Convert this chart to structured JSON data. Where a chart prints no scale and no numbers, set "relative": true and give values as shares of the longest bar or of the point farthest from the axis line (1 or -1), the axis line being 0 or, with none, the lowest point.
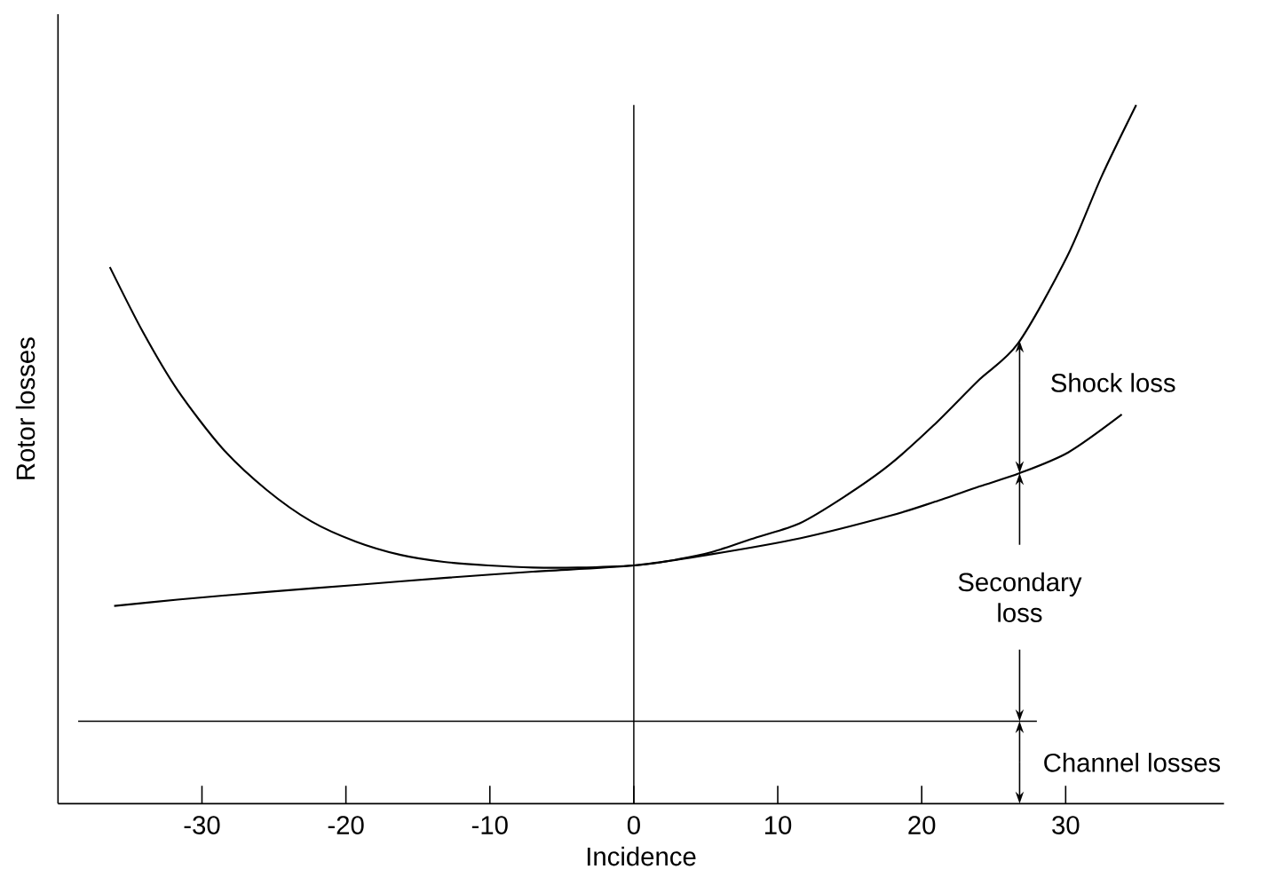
{
  "chart_data": {
    "type": "line",
    "relative": true,
    "xlabel": "Incidence",
    "ylabel": "Rotor losses",
    "xlim": [
      -40,
      41
    ],
    "xticks": [
      -30,
      -20,
      -10,
      0,
      10,
      20,
      30
    ],
    "series": [
      {
        "color": "#000000",
        "x": [
          -36.4,
          -34.1,
          -31.7,
          -28.6,
          -25.5,
          -22.4,
          -19.3,
          -16.2,
          -13.2,
          -10.1,
          -7.0,
          -3.9,
          0,
          2.3,
          5.4,
          8.5,
          11.5,
          14.6,
          17.7,
          20.8,
          23.9,
          26.7,
          30.1,
          32.5,
          34.9
        ],
        "values": [
          0.768,
          0.675,
          0.592,
          0.509,
          0.449,
          0.404,
          0.375,
          0.356,
          0.346,
          0.341,
          0.338,
          0.338,
          0.341,
          0.347,
          0.36,
          0.381,
          0.401,
          0.439,
          0.484,
          0.541,
          0.605,
          0.659,
          0.783,
          0.898,
          1.0
        ]
      },
      {
        "color": "#000000",
        "x": [
          -36.1,
          -31.7,
          -25.5,
          -19.3,
          -13.2,
          -7.0,
          0,
          5.4,
          11.6,
          17.8,
          20.9,
          24.0,
          26.8,
          30.2,
          33.9
        ],
        "values": [
          0.283,
          0.292,
          0.303,
          0.313,
          0.323,
          0.332,
          0.341,
          0.357,
          0.38,
          0.412,
          0.432,
          0.454,
          0.473,
          0.503,
          0.557
        ]
      }
    ],
    "ref_lines": [
      {
        "axis": "x",
        "value": 0
      },
      {
        "axis": "y",
        "value": 0.118
      }
    ],
    "annotations": [
      "Shock loss",
      "Secondary loss",
      "Channel losses"
    ]
  }
}
